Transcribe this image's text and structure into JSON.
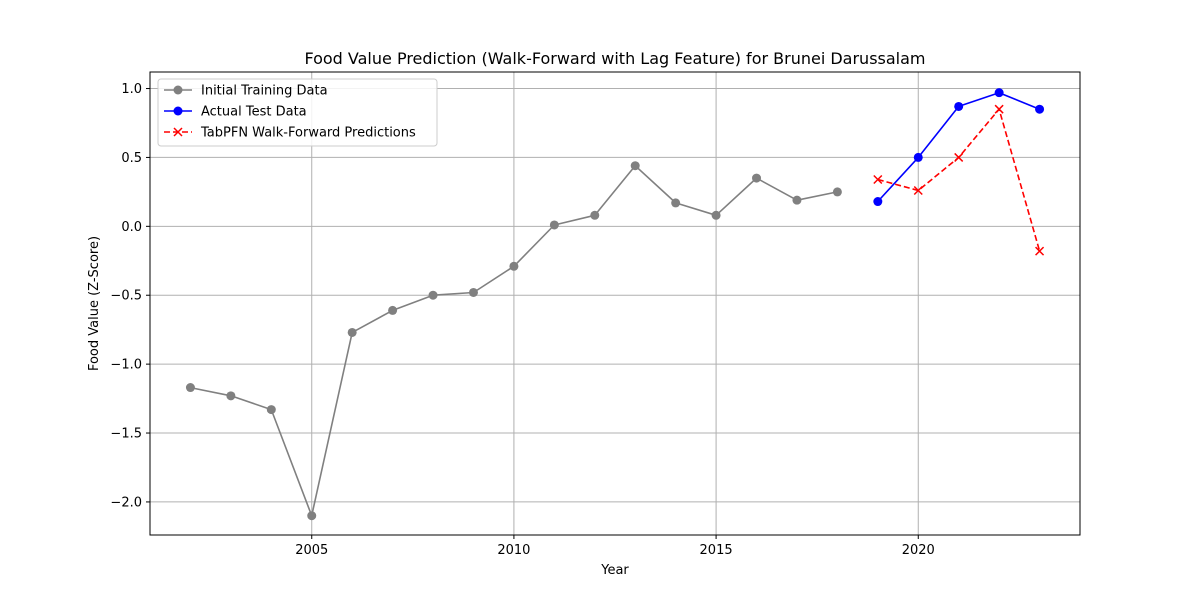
{
  "chart_data": {
    "type": "line",
    "title": "Food Value Prediction (Walk-Forward with Lag Feature) for Brunei Darussalam",
    "xlabel": "Year",
    "ylabel": "Food Value (Z-Score)",
    "xlim": [
      2001.0,
      2024.0
    ],
    "ylim": [
      -2.24,
      1.12
    ],
    "x_ticks": [
      2005,
      2010,
      2015,
      2020
    ],
    "y_ticks": [
      -2.0,
      -1.5,
      -1.0,
      -0.5,
      0.0,
      0.5,
      1.0
    ],
    "y_tick_labels": [
      "−2.0",
      "−1.5",
      "−1.0",
      "−0.5",
      "0.0",
      "0.5",
      "1.0"
    ],
    "grid": true,
    "legend_position": "top-left",
    "series": [
      {
        "name": "Initial Training Data",
        "color": "#808080",
        "line_style": "solid",
        "marker": "circle",
        "x": [
          2002,
          2003,
          2004,
          2005,
          2006,
          2007,
          2008,
          2009,
          2010,
          2011,
          2012,
          2013,
          2014,
          2015,
          2016,
          2017,
          2018
        ],
        "y": [
          -1.17,
          -1.23,
          -1.33,
          -2.1,
          -0.77,
          -0.61,
          -0.5,
          -0.48,
          -0.29,
          0.01,
          0.08,
          0.44,
          0.17,
          0.08,
          0.35,
          0.19,
          0.25
        ]
      },
      {
        "name": "Actual Test Data",
        "color": "#0000ff",
        "line_style": "solid",
        "marker": "circle",
        "x": [
          2019,
          2020,
          2021,
          2022,
          2023
        ],
        "y": [
          0.18,
          0.5,
          0.87,
          0.97,
          0.85
        ]
      },
      {
        "name": "TabPFN Walk-Forward Predictions",
        "color": "#ff0000",
        "line_style": "dashed",
        "marker": "x",
        "x": [
          2019,
          2020,
          2021,
          2022,
          2023
        ],
        "y": [
          0.34,
          0.26,
          0.5,
          0.85,
          -0.18
        ]
      }
    ]
  }
}
